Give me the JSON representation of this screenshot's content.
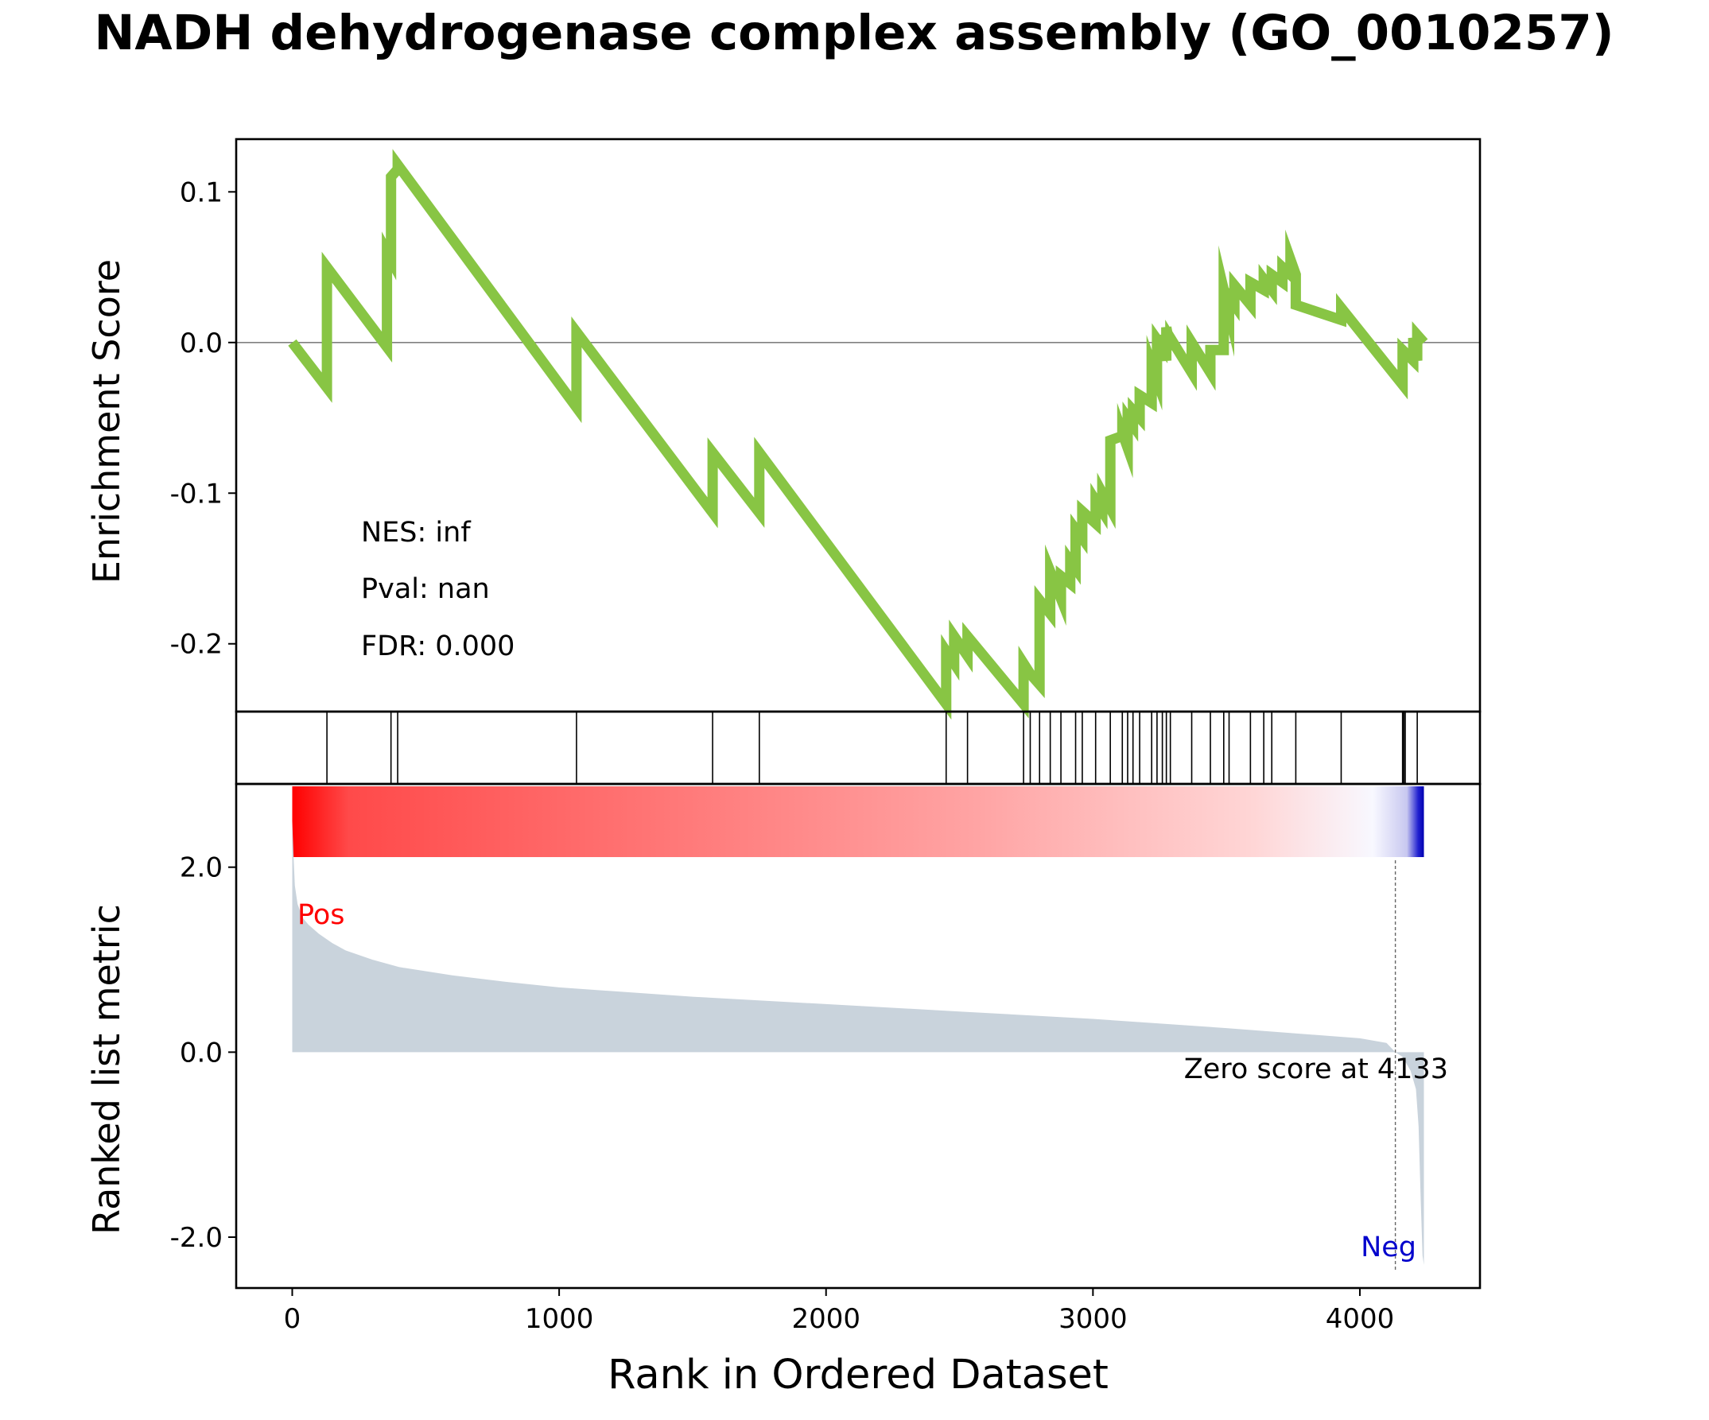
{
  "chart_data": {
    "type": "line",
    "title": "NADH dehydrogenase complex assembly (GO_0010257)",
    "xlabel": "Rank in Ordered Dataset",
    "xlim": [
      -210,
      4450
    ],
    "x_ticks": [
      "0",
      "1000",
      "2000",
      "3000",
      "4000"
    ],
    "x_tick_values": [
      0,
      1000,
      2000,
      3000,
      4000
    ],
    "colors": {
      "es_line": "#88c544",
      "metric_fill": "#c9d3dc",
      "pos_color": "#ff0000",
      "neg_color": "#0000cc",
      "hits": "#000000"
    },
    "enrichment_panel": {
      "ylabel": "Enrichment Score",
      "ylim": [
        -0.245,
        0.135
      ],
      "y_ticks": [
        "0.1",
        "0.0",
        "-0.1",
        "-0.2"
      ],
      "y_tick_values": [
        0.1,
        0.0,
        -0.1,
        -0.2
      ],
      "zero_line": true,
      "series": [
        {
          "x": [
            0,
            130,
            130,
            355,
            355,
            370,
            370,
            395,
            395,
            1065,
            1065,
            1575,
            1575,
            1750,
            1750,
            2450,
            2450,
            2480,
            2480,
            2530,
            2530,
            2740,
            2740,
            2765,
            2765,
            2800,
            2800,
            2840,
            2840,
            2880,
            2880,
            2915,
            2915,
            2935,
            2935,
            2960,
            2960,
            3010,
            3010,
            3035,
            3035,
            3065,
            3065,
            3110,
            3110,
            3130,
            3130,
            3150,
            3150,
            3175,
            3175,
            3220,
            3220,
            3240,
            3240,
            3260,
            3260,
            3275,
            3275,
            3290,
            3290,
            3370,
            3370,
            3440,
            3440,
            3490,
            3490,
            3510,
            3510,
            3530,
            3530,
            3590,
            3590,
            3640,
            3640,
            3670,
            3670,
            3710,
            3710,
            3740,
            3740,
            3760,
            3760,
            3930,
            3930,
            4160,
            4160,
            4200,
            4200,
            4215,
            4215,
            4240
          ],
          "y": [
            0.0,
            -0.03,
            0.05,
            -0.003,
            0.06,
            0.055,
            0.11,
            0.115,
            0.118,
            -0.043,
            0.007,
            -0.113,
            -0.073,
            -0.113,
            -0.073,
            -0.24,
            -0.205,
            -0.213,
            -0.195,
            -0.208,
            -0.195,
            -0.24,
            -0.213,
            -0.22,
            -0.22,
            -0.227,
            -0.171,
            -0.18,
            -0.152,
            -0.17,
            -0.155,
            -0.16,
            -0.145,
            -0.15,
            -0.124,
            -0.13,
            -0.112,
            -0.12,
            -0.105,
            -0.112,
            -0.1,
            -0.11,
            -0.065,
            -0.062,
            -0.06,
            -0.07,
            -0.05,
            -0.055,
            -0.045,
            -0.05,
            -0.035,
            -0.04,
            -0.015,
            -0.025,
            0.002,
            -0.003,
            0.005,
            -0.012,
            0.01,
            -0.005,
            0.003,
            -0.02,
            0.0,
            -0.02,
            -0.005,
            -0.005,
            0.035,
            0.02,
            0.03,
            0.025,
            0.038,
            0.025,
            0.04,
            0.035,
            0.042,
            0.035,
            0.045,
            0.04,
            0.05,
            0.045,
            0.055,
            0.045,
            0.025,
            0.015,
            0.023,
            -0.028,
            -0.005,
            -0.012,
            0.003,
            -0.012,
            0.005,
            0.0
          ]
        }
      ],
      "annotations": [
        "NES: inf",
        "Pval: nan",
        "FDR: 0.000"
      ]
    },
    "hits_panel": {
      "hit_ranks": [
        130,
        370,
        395,
        1065,
        1575,
        1750,
        2450,
        2530,
        2740,
        2765,
        2800,
        2840,
        2880,
        2935,
        2960,
        3010,
        3065,
        3110,
        3130,
        3150,
        3175,
        3220,
        3240,
        3260,
        3275,
        3290,
        3370,
        3440,
        3490,
        3510,
        3590,
        3640,
        3670,
        3760,
        3930,
        4160,
        4165,
        4170,
        4215
      ]
    },
    "metric_panel": {
      "ylabel": "Ranked list metric",
      "ylim": [
        -2.55,
        2.9
      ],
      "y_ticks": [
        "2.0",
        "0.0",
        "-2.0"
      ],
      "y_tick_values": [
        2.0,
        0.0,
        -2.0
      ],
      "zero_score_rank": 4133,
      "zero_score_label": "Zero score at 4133",
      "pos_label": "Pos",
      "neg_label": "Neg",
      "metric_curve": {
        "x": [
          0,
          5,
          10,
          20,
          40,
          60,
          80,
          100,
          150,
          200,
          300,
          400,
          600,
          800,
          1000,
          1500,
          2000,
          2500,
          3000,
          3500,
          4000,
          4100,
          4133,
          4160,
          4190,
          4210,
          4220,
          4228,
          4235,
          4240
        ],
        "y": [
          2.5,
          2.1,
          1.8,
          1.6,
          1.45,
          1.38,
          1.33,
          1.28,
          1.18,
          1.1,
          1.0,
          0.92,
          0.83,
          0.76,
          0.7,
          0.6,
          0.52,
          0.44,
          0.36,
          0.26,
          0.15,
          0.1,
          0.0,
          -0.05,
          -0.2,
          -0.4,
          -0.8,
          -1.6,
          -2.2,
          -2.3
        ]
      },
      "color_bar": {
        "x_start": 0,
        "x_end": 4240
      }
    }
  }
}
